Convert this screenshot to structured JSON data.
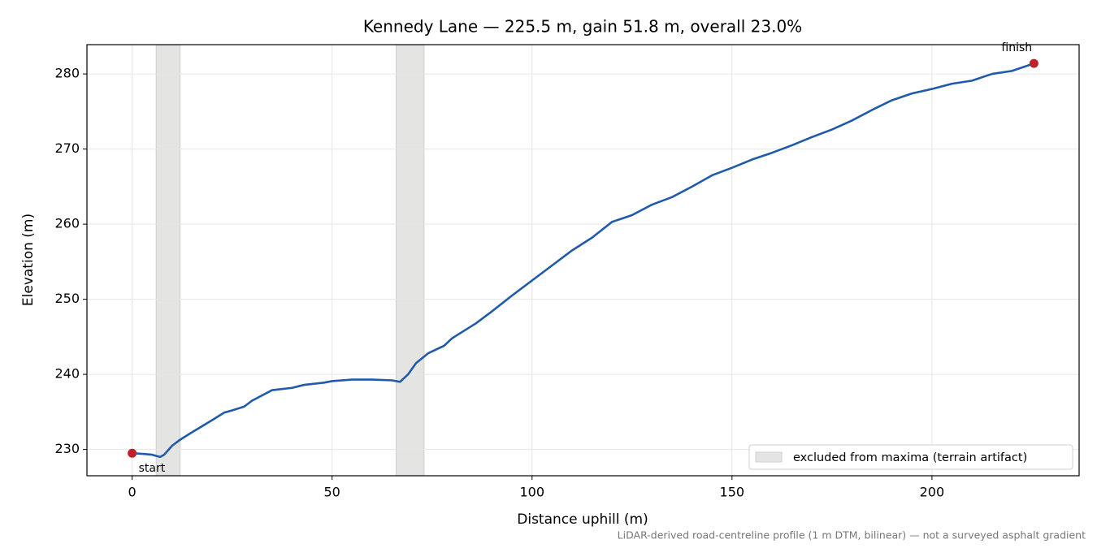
{
  "chart_data": {
    "type": "line",
    "title": "Kennedy Lane — 225.5 m, gain 51.8 m, overall 23.0%",
    "x_label": "Distance uphill (m)",
    "y_label": "Elevation (m)",
    "footnote": "LiDAR-derived road-centreline profile (1 m DTM, bilinear) — not a surveyed asphalt gradient",
    "x": [
      0,
      3,
      5,
      7,
      8,
      10,
      12,
      15,
      20,
      23,
      25,
      28,
      30,
      35,
      40,
      43,
      48,
      50,
      55,
      60,
      65,
      67,
      69,
      71,
      74,
      78,
      80,
      86,
      90,
      95,
      100,
      105,
      110,
      115,
      120,
      125,
      130,
      135,
      140,
      145,
      150,
      155,
      160,
      165,
      170,
      175,
      180,
      185,
      190,
      195,
      200,
      205,
      210,
      215,
      220,
      225.5
    ],
    "series": [
      {
        "color": "#1f5aab",
        "values": [
          229.5,
          229.4,
          229.3,
          229.0,
          229.3,
          230.5,
          231.3,
          232.3,
          233.9,
          234.9,
          235.2,
          235.7,
          236.5,
          237.9,
          238.2,
          238.6,
          238.9,
          239.1,
          239.3,
          239.3,
          239.2,
          239.0,
          240.0,
          241.5,
          242.8,
          243.8,
          244.8,
          246.8,
          248.4,
          250.5,
          252.5,
          254.5,
          256.5,
          258.2,
          260.3,
          261.2,
          262.6,
          263.6,
          265.0,
          266.5,
          267.5,
          268.6,
          269.5,
          270.5,
          271.6,
          272.6,
          273.8,
          275.2,
          276.5,
          277.4,
          278.0,
          278.7,
          279.1,
          280.0,
          280.4,
          281.4
        ]
      }
    ],
    "endpoint_color": "#c0202a",
    "annotations": [
      "start",
      "finish"
    ],
    "excluded_ranges": [
      [
        6,
        12
      ],
      [
        66,
        73
      ]
    ],
    "excluded_label": "excluded from maxima (terrain artifact)",
    "excluded_color": "#e4e4e2",
    "legend": "lower right",
    "xlim": [
      -11.3,
      236.8
    ],
    "ylim": [
      226.5,
      283.9
    ],
    "xticks": [
      0,
      50,
      100,
      150,
      200
    ],
    "yticks": [
      230,
      240,
      250,
      260,
      270,
      280
    ],
    "grid": true
  }
}
